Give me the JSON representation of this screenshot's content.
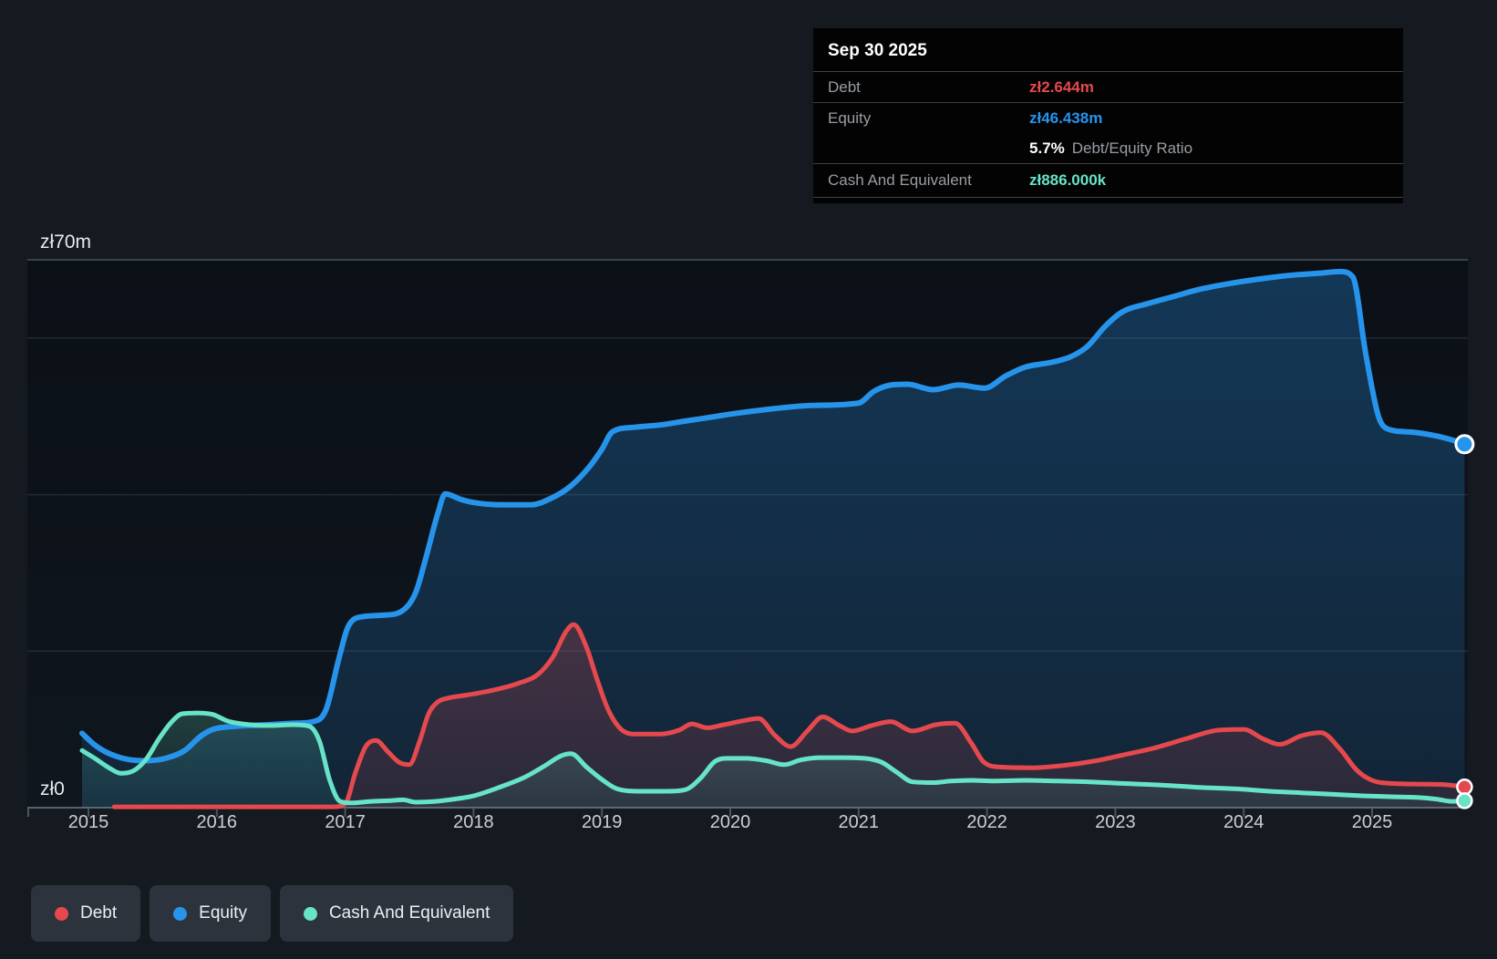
{
  "tooltip": {
    "title": "Sep 30 2025",
    "rows": {
      "debt": {
        "label": "Debt",
        "value": "zł2.644m"
      },
      "equity": {
        "label": "Equity",
        "value": "zł46.438m"
      },
      "ratio": {
        "value": "5.7%",
        "label": "Debt/Equity Ratio"
      },
      "cash": {
        "label": "Cash And Equivalent",
        "value": "zł886.000k"
      }
    }
  },
  "legend": {
    "debt": "Debt",
    "equity": "Equity",
    "cash": "Cash And Equivalent"
  },
  "colors": {
    "debt": "#e5494d",
    "equity": "#2794ec",
    "cash": "#67e3c8",
    "grid_minor": "#232a33",
    "grid_top": "#3a424c",
    "axis_line": "#5a6069",
    "tick": "#4d545d",
    "axis_text": "#c9ced3",
    "y_label_text": "#e7eaec"
  },
  "axis": {
    "y_top_label": "zł70m",
    "y_zero_label": "zł0",
    "years": [
      "2015",
      "2016",
      "2017",
      "2018",
      "2019",
      "2020",
      "2021",
      "2022",
      "2023",
      "2024",
      "2025"
    ]
  },
  "chart_data": {
    "type": "area",
    "title": "Debt to Equity history",
    "unit": "PLN millions (zł m)",
    "y_axis": {
      "min": 0,
      "max": 70,
      "gridline_values": [
        20,
        40,
        60
      ],
      "top_value": 70
    },
    "x_axis": {
      "start": 2014.95,
      "end": 2025.75,
      "tick_years": [
        2015,
        2016,
        2017,
        2018,
        2019,
        2020,
        2021,
        2022,
        2023,
        2024,
        2025
      ]
    },
    "legend_position": "bottom-left",
    "series": [
      {
        "name": "Equity",
        "key": "equity",
        "points": [
          [
            2014.95,
            9.5
          ],
          [
            2015.05,
            8.0
          ],
          [
            2015.15,
            7.0
          ],
          [
            2015.3,
            6.2
          ],
          [
            2015.45,
            6.0
          ],
          [
            2015.6,
            6.3
          ],
          [
            2015.75,
            7.3
          ],
          [
            2015.88,
            9.2
          ],
          [
            2015.97,
            10.0
          ],
          [
            2016.15,
            10.4
          ],
          [
            2016.4,
            10.6
          ],
          [
            2016.62,
            10.8
          ],
          [
            2016.75,
            11.0
          ],
          [
            2016.85,
            12.5
          ],
          [
            2016.95,
            19.0
          ],
          [
            2017.02,
            23.0
          ],
          [
            2017.1,
            24.3
          ],
          [
            2017.3,
            24.6
          ],
          [
            2017.45,
            25.2
          ],
          [
            2017.55,
            27.5
          ],
          [
            2017.63,
            32.0
          ],
          [
            2017.72,
            37.5
          ],
          [
            2017.78,
            40.1
          ],
          [
            2017.9,
            39.4
          ],
          [
            2018.0,
            39.0
          ],
          [
            2018.2,
            38.7
          ],
          [
            2018.45,
            38.7
          ],
          [
            2018.6,
            39.5
          ],
          [
            2018.75,
            41.0
          ],
          [
            2018.9,
            43.5
          ],
          [
            2019.0,
            45.8
          ],
          [
            2019.08,
            48.0
          ],
          [
            2019.25,
            48.6
          ],
          [
            2019.45,
            48.9
          ],
          [
            2019.65,
            49.4
          ],
          [
            2019.85,
            49.9
          ],
          [
            2020.05,
            50.4
          ],
          [
            2020.35,
            51.0
          ],
          [
            2020.65,
            51.4
          ],
          [
            2021.0,
            51.7
          ],
          [
            2021.12,
            53.2
          ],
          [
            2021.25,
            54.0
          ],
          [
            2021.38,
            54.1
          ],
          [
            2021.58,
            53.4
          ],
          [
            2021.78,
            54.0
          ],
          [
            2021.98,
            53.6
          ],
          [
            2022.15,
            55.2
          ],
          [
            2022.3,
            56.3
          ],
          [
            2022.5,
            56.9
          ],
          [
            2022.65,
            57.6
          ],
          [
            2022.78,
            58.9
          ],
          [
            2022.92,
            61.5
          ],
          [
            2023.05,
            63.3
          ],
          [
            2023.25,
            64.4
          ],
          [
            2023.45,
            65.3
          ],
          [
            2023.65,
            66.2
          ],
          [
            2023.9,
            67.0
          ],
          [
            2024.1,
            67.5
          ],
          [
            2024.35,
            68.0
          ],
          [
            2024.6,
            68.3
          ],
          [
            2024.75,
            68.5
          ],
          [
            2024.85,
            67.8
          ],
          [
            2024.95,
            58.0
          ],
          [
            2025.05,
            50.0
          ],
          [
            2025.12,
            48.4
          ],
          [
            2025.3,
            48.0
          ],
          [
            2025.5,
            47.5
          ],
          [
            2025.62,
            47.0
          ],
          [
            2025.72,
            46.438
          ]
        ]
      },
      {
        "name": "Debt",
        "key": "debt",
        "points": [
          [
            2015.2,
            0.1
          ],
          [
            2015.6,
            0.1
          ],
          [
            2016.0,
            0.1
          ],
          [
            2016.5,
            0.1
          ],
          [
            2016.9,
            0.1
          ],
          [
            2017.0,
            0.5
          ],
          [
            2017.08,
            4.5
          ],
          [
            2017.16,
            7.8
          ],
          [
            2017.24,
            8.6
          ],
          [
            2017.33,
            7.2
          ],
          [
            2017.42,
            5.8
          ],
          [
            2017.5,
            5.5
          ],
          [
            2017.58,
            8.5
          ],
          [
            2017.65,
            12.0
          ],
          [
            2017.72,
            13.5
          ],
          [
            2017.8,
            14.0
          ],
          [
            2017.95,
            14.4
          ],
          [
            2018.15,
            15.0
          ],
          [
            2018.35,
            15.9
          ],
          [
            2018.5,
            17.0
          ],
          [
            2018.62,
            19.3
          ],
          [
            2018.72,
            22.5
          ],
          [
            2018.78,
            23.4
          ],
          [
            2018.88,
            20.5
          ],
          [
            2018.96,
            16.5
          ],
          [
            2019.05,
            12.5
          ],
          [
            2019.15,
            10.0
          ],
          [
            2019.25,
            9.4
          ],
          [
            2019.45,
            9.4
          ],
          [
            2019.6,
            9.9
          ],
          [
            2019.7,
            10.7
          ],
          [
            2019.82,
            10.2
          ],
          [
            2019.95,
            10.6
          ],
          [
            2020.1,
            11.1
          ],
          [
            2020.22,
            11.4
          ],
          [
            2020.35,
            9.2
          ],
          [
            2020.47,
            7.8
          ],
          [
            2020.6,
            9.8
          ],
          [
            2020.72,
            11.6
          ],
          [
            2020.85,
            10.5
          ],
          [
            2020.95,
            9.8
          ],
          [
            2021.1,
            10.5
          ],
          [
            2021.25,
            11.0
          ],
          [
            2021.42,
            9.8
          ],
          [
            2021.6,
            10.6
          ],
          [
            2021.75,
            10.8
          ],
          [
            2021.88,
            8.2
          ],
          [
            2021.97,
            5.9
          ],
          [
            2022.1,
            5.2
          ],
          [
            2022.35,
            5.1
          ],
          [
            2022.6,
            5.4
          ],
          [
            2022.85,
            6.0
          ],
          [
            2023.05,
            6.7
          ],
          [
            2023.3,
            7.6
          ],
          [
            2023.55,
            8.8
          ],
          [
            2023.8,
            9.9
          ],
          [
            2024.0,
            10.0
          ],
          [
            2024.15,
            8.8
          ],
          [
            2024.28,
            8.1
          ],
          [
            2024.45,
            9.2
          ],
          [
            2024.6,
            9.6
          ],
          [
            2024.75,
            7.5
          ],
          [
            2024.88,
            4.8
          ],
          [
            2025.0,
            3.5
          ],
          [
            2025.15,
            3.1
          ],
          [
            2025.4,
            3.0
          ],
          [
            2025.6,
            2.9
          ],
          [
            2025.72,
            2.644
          ]
        ]
      },
      {
        "name": "Cash And Equivalent",
        "key": "cash",
        "points": [
          [
            2014.95,
            7.3
          ],
          [
            2015.05,
            6.3
          ],
          [
            2015.17,
            5.0
          ],
          [
            2015.25,
            4.4
          ],
          [
            2015.35,
            4.7
          ],
          [
            2015.45,
            6.2
          ],
          [
            2015.55,
            8.8
          ],
          [
            2015.65,
            11.0
          ],
          [
            2015.73,
            12.0
          ],
          [
            2015.85,
            12.1
          ],
          [
            2015.97,
            11.9
          ],
          [
            2016.08,
            11.1
          ],
          [
            2016.2,
            10.7
          ],
          [
            2016.4,
            10.5
          ],
          [
            2016.6,
            10.6
          ],
          [
            2016.72,
            10.4
          ],
          [
            2016.8,
            8.5
          ],
          [
            2016.88,
            3.5
          ],
          [
            2016.96,
            0.8
          ],
          [
            2017.05,
            0.6
          ],
          [
            2017.2,
            0.8
          ],
          [
            2017.35,
            0.9
          ],
          [
            2017.45,
            1.0
          ],
          [
            2017.55,
            0.7
          ],
          [
            2017.7,
            0.8
          ],
          [
            2017.85,
            1.1
          ],
          [
            2018.0,
            1.5
          ],
          [
            2018.2,
            2.6
          ],
          [
            2018.4,
            3.9
          ],
          [
            2018.55,
            5.3
          ],
          [
            2018.68,
            6.6
          ],
          [
            2018.76,
            6.9
          ],
          [
            2018.88,
            5.2
          ],
          [
            2019.0,
            3.6
          ],
          [
            2019.12,
            2.4
          ],
          [
            2019.3,
            2.1
          ],
          [
            2019.5,
            2.1
          ],
          [
            2019.65,
            2.3
          ],
          [
            2019.77,
            3.8
          ],
          [
            2019.88,
            5.9
          ],
          [
            2019.98,
            6.3
          ],
          [
            2020.12,
            6.3
          ],
          [
            2020.28,
            6.0
          ],
          [
            2020.42,
            5.5
          ],
          [
            2020.55,
            6.1
          ],
          [
            2020.7,
            6.4
          ],
          [
            2020.88,
            6.4
          ],
          [
            2021.05,
            6.3
          ],
          [
            2021.18,
            5.8
          ],
          [
            2021.3,
            4.5
          ],
          [
            2021.42,
            3.3
          ],
          [
            2021.58,
            3.2
          ],
          [
            2021.72,
            3.4
          ],
          [
            2021.88,
            3.5
          ],
          [
            2022.05,
            3.4
          ],
          [
            2022.3,
            3.5
          ],
          [
            2022.55,
            3.4
          ],
          [
            2022.8,
            3.3
          ],
          [
            2023.05,
            3.1
          ],
          [
            2023.35,
            2.9
          ],
          [
            2023.65,
            2.6
          ],
          [
            2023.95,
            2.4
          ],
          [
            2024.2,
            2.1
          ],
          [
            2024.45,
            1.9
          ],
          [
            2024.7,
            1.7
          ],
          [
            2024.95,
            1.5
          ],
          [
            2025.15,
            1.4
          ],
          [
            2025.35,
            1.3
          ],
          [
            2025.5,
            1.1
          ],
          [
            2025.62,
            0.8
          ],
          [
            2025.72,
            0.886
          ]
        ]
      }
    ]
  }
}
